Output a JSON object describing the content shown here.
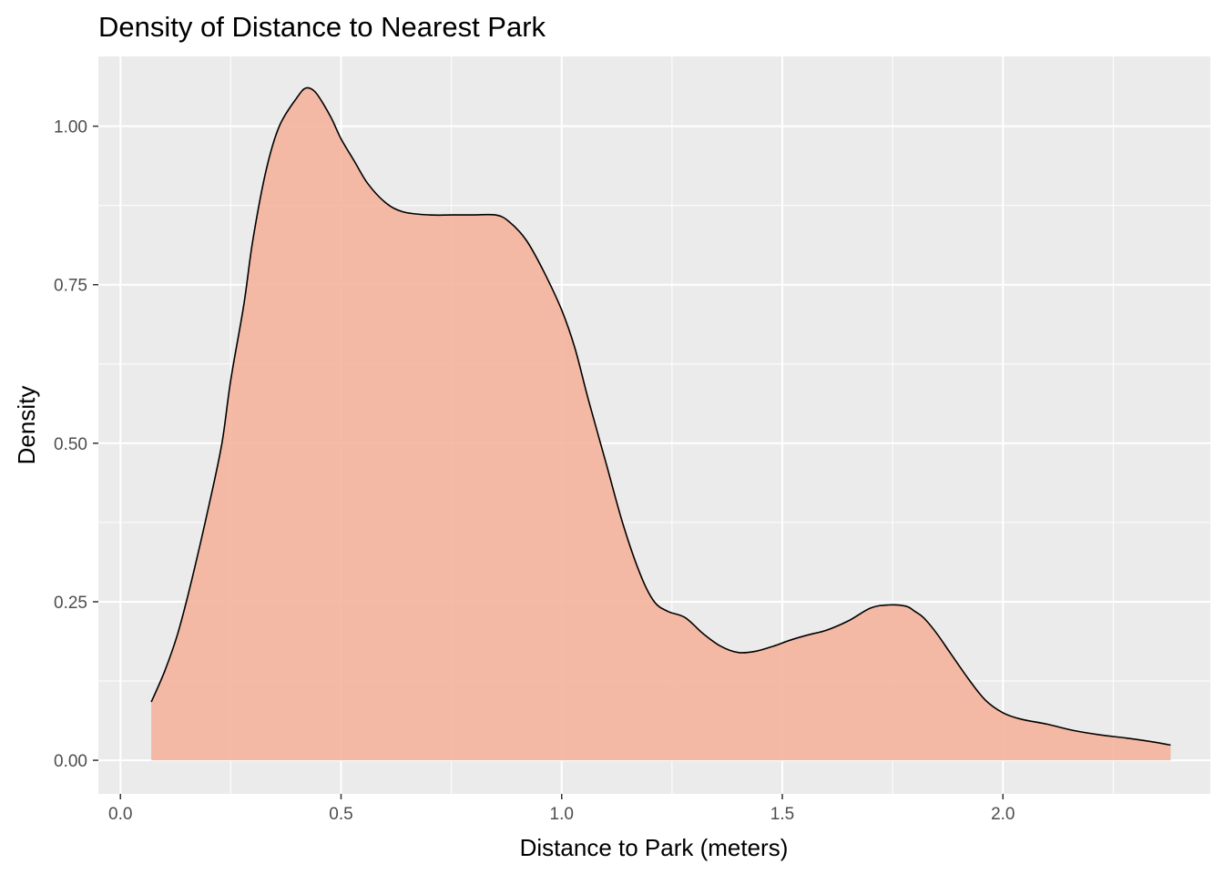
{
  "chart_data": {
    "type": "area",
    "title": "Density of Distance to Nearest Park",
    "xlabel": "Distance to Park (meters)",
    "ylabel": "Density",
    "xlim": [
      -0.05,
      2.47
    ],
    "ylim": [
      -0.053,
      1.11
    ],
    "x_ticks": [
      0.0,
      0.5,
      1.0,
      1.5,
      2.0
    ],
    "x_tick_labels": [
      "0.0",
      "0.5",
      "1.0",
      "1.5",
      "2.0"
    ],
    "y_ticks": [
      0.0,
      0.25,
      0.5,
      0.75,
      1.0
    ],
    "y_tick_labels": [
      "0.00",
      "0.25",
      "0.50",
      "0.75",
      "1.00"
    ],
    "grid": true,
    "legend": "none",
    "colors": {
      "panel": "#ebebeb",
      "grid_major": "#ffffff",
      "fill": "#f4b49c",
      "line": "#000000"
    },
    "series": [
      {
        "x": [
          0.07,
          0.1,
          0.13,
          0.16,
          0.2,
          0.23,
          0.25,
          0.28,
          0.3,
          0.33,
          0.36,
          0.4,
          0.42,
          0.44,
          0.46,
          0.48,
          0.5,
          0.53,
          0.56,
          0.6,
          0.64,
          0.7,
          0.75,
          0.8,
          0.85,
          0.88,
          0.92,
          0.96,
          1.0,
          1.03,
          1.06,
          1.1,
          1.14,
          1.18,
          1.21,
          1.24,
          1.28,
          1.32,
          1.36,
          1.4,
          1.44,
          1.48,
          1.52,
          1.56,
          1.6,
          1.65,
          1.7,
          1.74,
          1.78,
          1.8,
          1.82,
          1.85,
          1.88,
          1.92,
          1.96,
          2.0,
          2.04,
          2.1,
          2.16,
          2.22,
          2.28,
          2.34,
          2.38
        ],
        "y": [
          0.092,
          0.14,
          0.2,
          0.28,
          0.4,
          0.5,
          0.6,
          0.72,
          0.82,
          0.93,
          1.0,
          1.045,
          1.06,
          1.055,
          1.035,
          1.01,
          0.98,
          0.945,
          0.91,
          0.88,
          0.865,
          0.86,
          0.86,
          0.86,
          0.86,
          0.85,
          0.82,
          0.77,
          0.71,
          0.65,
          0.57,
          0.47,
          0.37,
          0.29,
          0.25,
          0.235,
          0.225,
          0.2,
          0.18,
          0.17,
          0.172,
          0.18,
          0.19,
          0.198,
          0.205,
          0.22,
          0.24,
          0.245,
          0.243,
          0.235,
          0.225,
          0.2,
          0.17,
          0.13,
          0.095,
          0.075,
          0.065,
          0.057,
          0.047,
          0.04,
          0.035,
          0.029,
          0.024
        ]
      }
    ]
  }
}
